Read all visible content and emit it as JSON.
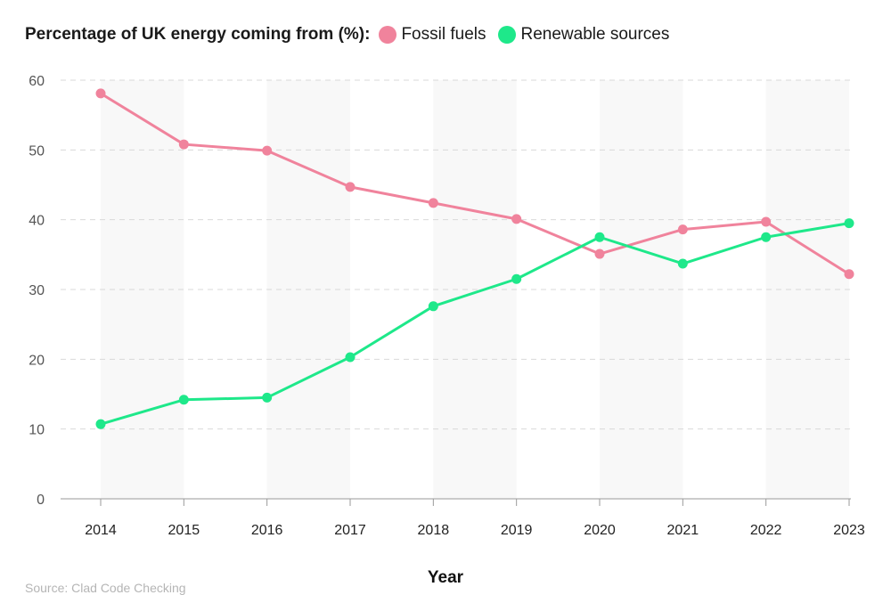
{
  "legend": {
    "title": "Percentage of UK energy coming from (%):"
  },
  "source": "Source: Clad Code Checking",
  "chart_data": {
    "type": "line",
    "title": "Percentage of UK energy coming from (%):",
    "xlabel": "Year",
    "ylabel": "",
    "x": [
      "2014",
      "2015",
      "2016",
      "2017",
      "2018",
      "2019",
      "2020",
      "2021",
      "2022",
      "2023"
    ],
    "ylim": [
      0,
      60
    ],
    "yticks": [
      0,
      10,
      20,
      30,
      40,
      50,
      60
    ],
    "grid": true,
    "legend_position": "top-left",
    "series": [
      {
        "name": "Fossil fuels",
        "color": "#f0839c",
        "values": [
          58.1,
          50.8,
          49.9,
          44.7,
          42.4,
          40.1,
          35.1,
          38.6,
          39.7,
          32.2
        ]
      },
      {
        "name": "Renewable sources",
        "color": "#1ee88a",
        "values": [
          10.7,
          14.2,
          14.5,
          20.3,
          27.6,
          31.5,
          37.5,
          33.7,
          37.5,
          39.5
        ]
      }
    ]
  }
}
